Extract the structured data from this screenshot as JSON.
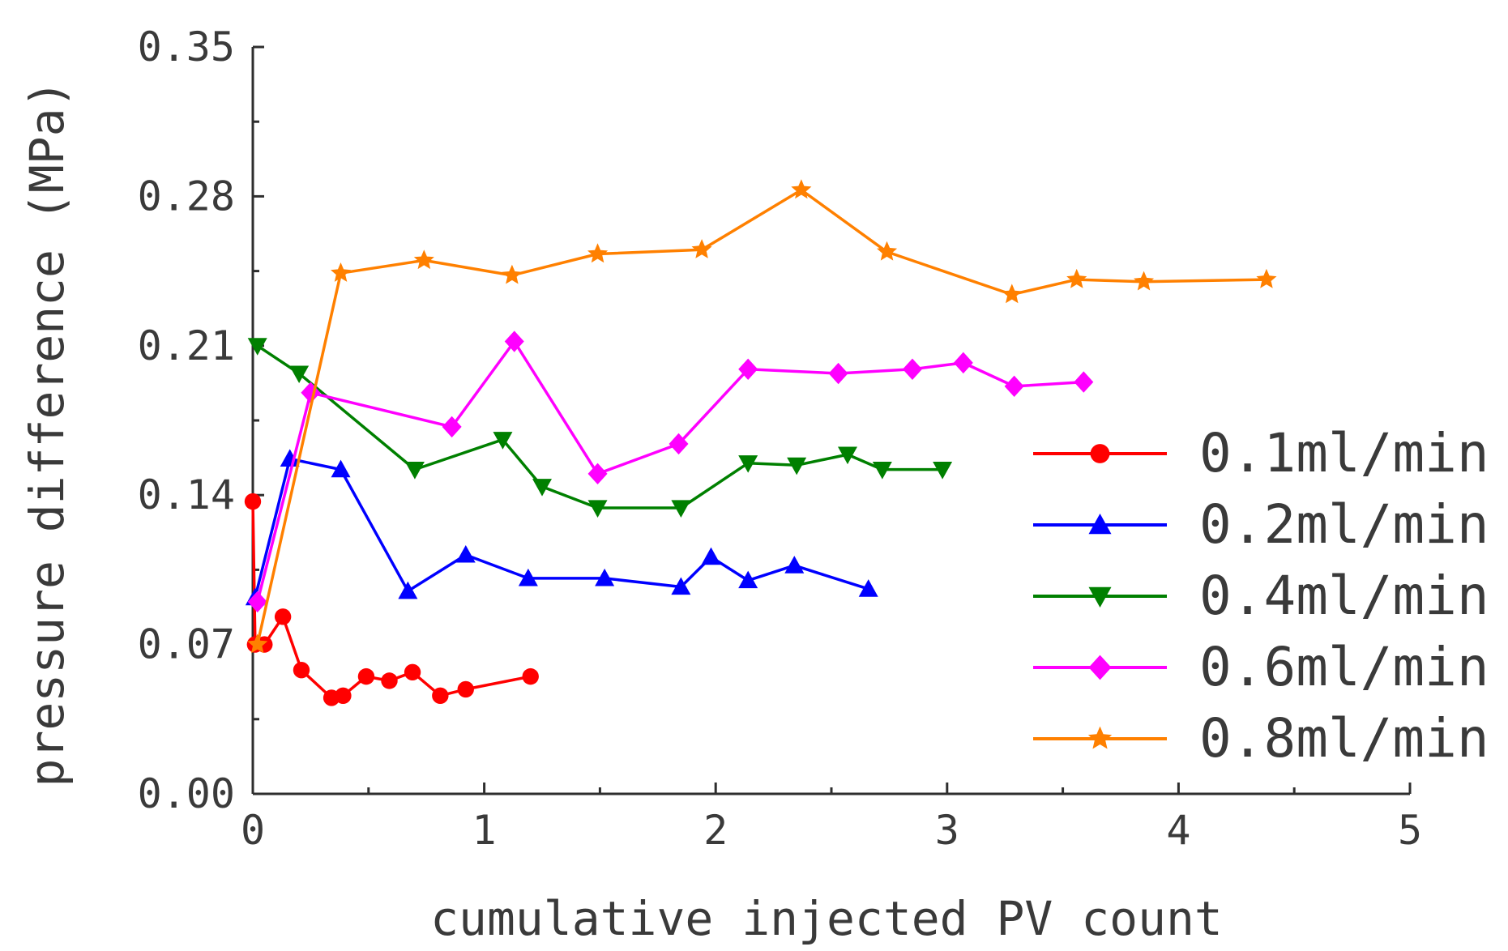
{
  "chart_data": {
    "type": "line",
    "title": "",
    "xlabel": "cumulative injected PV count",
    "ylabel": "pressure difference (MPa)",
    "xlim": [
      0,
      5
    ],
    "ylim": [
      0,
      0.35
    ],
    "x_ticks": [
      0,
      1,
      2,
      3,
      4,
      5
    ],
    "x_tick_labels": [
      "0",
      "1",
      "2",
      "3",
      "4",
      "5"
    ],
    "y_ticks": [
      0,
      0.07,
      0.14,
      0.21,
      0.28,
      0.35
    ],
    "y_tick_labels": [
      "0.00",
      "0.07",
      "0.14",
      "0.21",
      "0.28",
      "0.35"
    ],
    "grid": false,
    "legend_position": "right",
    "series": [
      {
        "name": "0.1ml/min",
        "color": "#ff0000",
        "marker": "circle",
        "x": [
          0.0,
          0.01,
          0.05,
          0.13,
          0.21,
          0.34,
          0.39,
          0.49,
          0.59,
          0.69,
          0.81,
          0.92,
          1.2
        ],
        "y": [
          0.137,
          0.07,
          0.07,
          0.083,
          0.058,
          0.045,
          0.046,
          0.055,
          0.053,
          0.057,
          0.046,
          0.049,
          0.055
        ]
      },
      {
        "name": "0.2ml/min",
        "color": "#0000ff",
        "marker": "triangle-up",
        "x": [
          0.01,
          0.16,
          0.38,
          0.67,
          0.92,
          1.19,
          1.52,
          1.85,
          1.98,
          2.14,
          2.34,
          2.66
        ],
        "y": [
          0.092,
          0.157,
          0.152,
          0.095,
          0.112,
          0.101,
          0.101,
          0.097,
          0.111,
          0.1,
          0.107,
          0.096
        ]
      },
      {
        "name": "0.4ml/min",
        "color": "#008000",
        "marker": "triangle-down",
        "x": [
          0.02,
          0.2,
          0.7,
          1.08,
          1.25,
          1.49,
          1.85,
          2.14,
          2.35,
          2.57,
          2.72,
          2.98
        ],
        "y": [
          0.21,
          0.197,
          0.152,
          0.166,
          0.144,
          0.134,
          0.134,
          0.155,
          0.154,
          0.159,
          0.152,
          0.152
        ]
      },
      {
        "name": "0.6ml/min",
        "color": "#ff00ff",
        "marker": "diamond",
        "x": [
          0.02,
          0.25,
          0.86,
          1.13,
          1.49,
          1.84,
          2.14,
          2.53,
          2.85,
          3.07,
          3.29,
          3.59
        ],
        "y": [
          0.09,
          0.188,
          0.172,
          0.212,
          0.15,
          0.164,
          0.199,
          0.197,
          0.199,
          0.202,
          0.191,
          0.193
        ]
      },
      {
        "name": "0.8ml/min",
        "color": "#ff8000",
        "marker": "star",
        "x": [
          0.02,
          0.38,
          0.74,
          1.12,
          1.49,
          1.94,
          2.37,
          2.74,
          3.28,
          3.56,
          3.85,
          4.38
        ],
        "y": [
          0.07,
          0.244,
          0.25,
          0.243,
          0.253,
          0.255,
          0.283,
          0.254,
          0.234,
          0.241,
          0.24,
          0.241
        ]
      }
    ]
  }
}
